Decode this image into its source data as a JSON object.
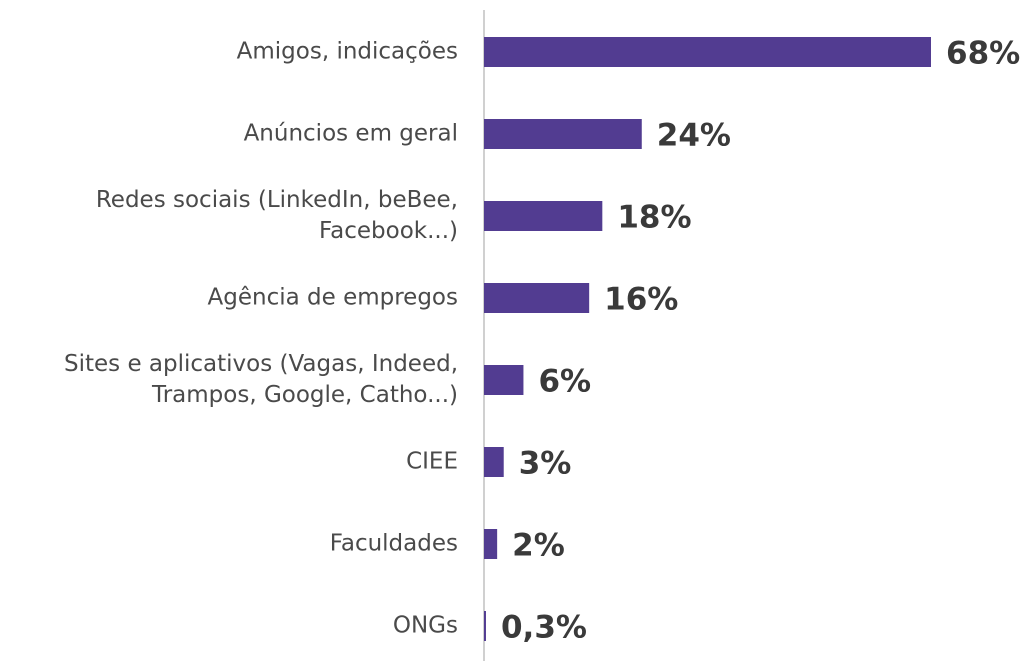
{
  "chart_data": {
    "type": "bar",
    "orientation": "horizontal",
    "categories": [
      "Amigos, indicações",
      "Anúncios em geral",
      "Redes sociais (LinkedIn, beBee,\nFacebook...)",
      "Agência de empregos",
      "Sites e aplicativos (Vagas, Indeed,\nTrampos, Google, Catho...)",
      "CIEE",
      "Faculdades",
      "ONGs"
    ],
    "values": [
      68,
      24,
      18,
      16,
      6,
      3,
      2,
      0.3
    ],
    "value_labels": [
      "68%",
      "24%",
      "18%",
      "16%",
      "6%",
      "3%",
      "2%",
      "0,3%"
    ],
    "color": "#523c91"
  }
}
